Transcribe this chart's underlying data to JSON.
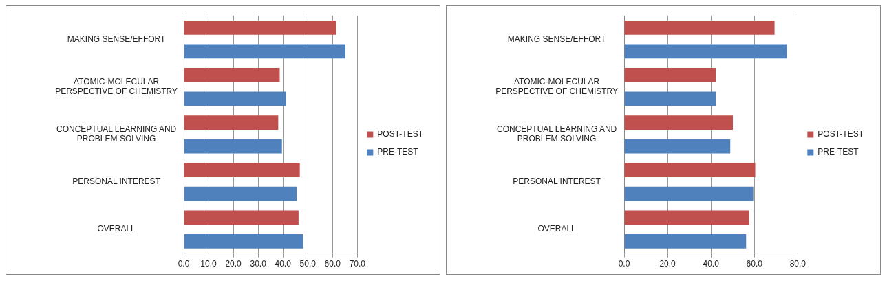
{
  "chart_data": [
    {
      "type": "bar",
      "orientation": "horizontal",
      "categories": [
        "MAKING SENSE/EFFORT",
        "ATOMIC-MOLECULAR PERSPECTIVE OF CHEMISTRY",
        "CONCEPTUAL LEARNING AND PROBLEM SOLVING",
        "PERSONAL INTEREST",
        "OVERALL"
      ],
      "series": [
        {
          "name": "POST-TEST",
          "color": "#c0504d",
          "values": [
            61.5,
            38.7,
            38.1,
            46.8,
            46.3
          ]
        },
        {
          "name": "PRE-TEST",
          "color": "#4f81bd",
          "values": [
            65.2,
            41.2,
            39.6,
            45.5,
            48.1
          ]
        }
      ],
      "xlim": [
        0,
        70
      ],
      "xticks": [
        {
          "value": 0,
          "label": "0.0"
        },
        {
          "value": 10,
          "label": "10.0"
        },
        {
          "value": 20,
          "label": "20.0"
        },
        {
          "value": 30,
          "label": "30.0"
        },
        {
          "value": 40,
          "label": "40.0"
        },
        {
          "value": 50,
          "label": "50.0"
        },
        {
          "value": 60,
          "label": "60.0"
        },
        {
          "value": 70,
          "label": "70.0"
        }
      ],
      "grid": "x",
      "legend": "right"
    },
    {
      "type": "bar",
      "orientation": "horizontal",
      "categories": [
        "MAKING SENSE/EFFORT",
        "ATOMIC-MOLECULAR PERSPECTIVE OF CHEMISTRY",
        "CONCEPTUAL LEARNING AND PROBLEM SOLVING",
        "PERSONAL INTEREST",
        "OVERALL"
      ],
      "series": [
        {
          "name": "POST-TEST",
          "color": "#c0504d",
          "values": [
            69.3,
            42.2,
            50.1,
            60.4,
            57.6
          ]
        },
        {
          "name": "PRE-TEST",
          "color": "#4f81bd",
          "values": [
            75.0,
            42.2,
            48.9,
            59.5,
            56.2
          ]
        }
      ],
      "xlim": [
        0,
        80
      ],
      "xticks": [
        {
          "value": 0,
          "label": "0.0"
        },
        {
          "value": 20,
          "label": "20.0"
        },
        {
          "value": 40,
          "label": "40.0"
        },
        {
          "value": 60,
          "label": "60.0"
        },
        {
          "value": 80,
          "label": "80.0"
        }
      ],
      "grid": "x",
      "legend": "right"
    }
  ]
}
